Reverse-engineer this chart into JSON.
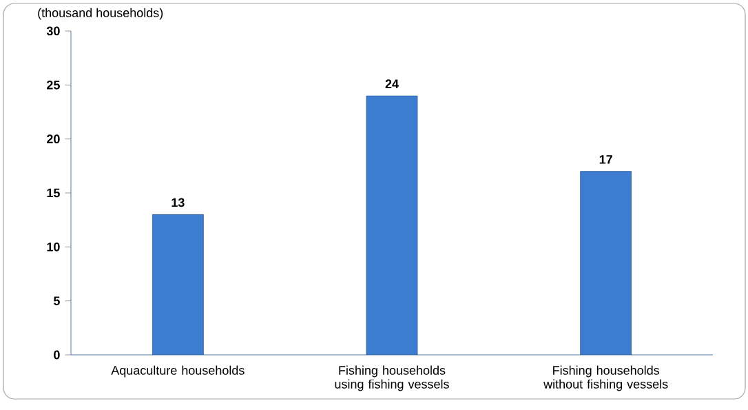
{
  "chart_data": {
    "type": "bar",
    "ylabel": "(thousand households)",
    "categories": [
      "Aquaculture households",
      "Fishing households using fishing vessels",
      "Fishing households without fishing vessels"
    ],
    "values": [
      13,
      24,
      17
    ],
    "color": "#3c7dd0",
    "ylim": [
      0,
      30
    ],
    "yticks": [
      0,
      5,
      10,
      15,
      20,
      25,
      30
    ],
    "data_labels": true
  }
}
